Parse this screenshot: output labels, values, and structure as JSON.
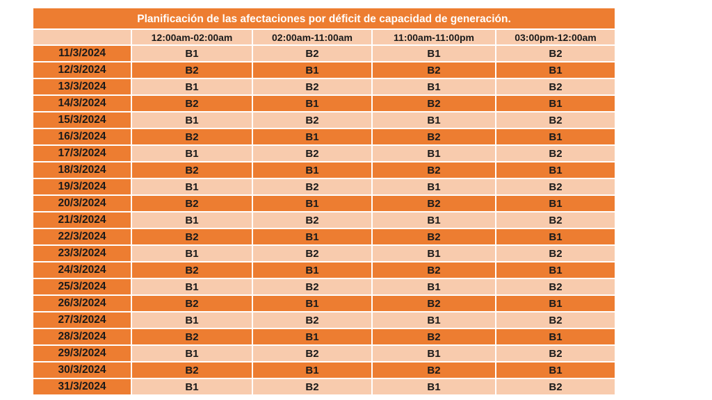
{
  "title": "Planificación de las afectaciones por déficit de capacidad de generación.",
  "columns": [
    "12:00am-02:00am",
    "02:00am-11:00am",
    "11:00am-11:00pm",
    "03:00pm-12:00am"
  ],
  "colors": {
    "dark": "#ED7D31",
    "light": "#F8CBAD",
    "title_text": "#FFFFFF"
  },
  "rows": [
    {
      "date": "11/3/2024",
      "values": [
        "B1",
        "B2",
        "B1",
        "B2"
      ]
    },
    {
      "date": "12/3/2024",
      "values": [
        "B2",
        "B1",
        "B2",
        "B1"
      ]
    },
    {
      "date": "13/3/2024",
      "values": [
        "B1",
        "B2",
        "B1",
        "B2"
      ]
    },
    {
      "date": "14/3/2024",
      "values": [
        "B2",
        "B1",
        "B2",
        "B1"
      ]
    },
    {
      "date": "15/3/2024",
      "values": [
        "B1",
        "B2",
        "B1",
        "B2"
      ]
    },
    {
      "date": "16/3/2024",
      "values": [
        "B2",
        "B1",
        "B2",
        "B1"
      ]
    },
    {
      "date": "17/3/2024",
      "values": [
        "B1",
        "B2",
        "B1",
        "B2"
      ]
    },
    {
      "date": "18/3/2024",
      "values": [
        "B2",
        "B1",
        "B2",
        "B1"
      ]
    },
    {
      "date": "19/3/2024",
      "values": [
        "B1",
        "B2",
        "B1",
        "B2"
      ]
    },
    {
      "date": "20/3/2024",
      "values": [
        "B2",
        "B1",
        "B2",
        "B1"
      ]
    },
    {
      "date": "21/3/2024",
      "values": [
        "B1",
        "B2",
        "B1",
        "B2"
      ]
    },
    {
      "date": "22/3/2024",
      "values": [
        "B2",
        "B1",
        "B2",
        "B1"
      ]
    },
    {
      "date": "23/3/2024",
      "values": [
        "B1",
        "B2",
        "B1",
        "B2"
      ]
    },
    {
      "date": "24/3/2024",
      "values": [
        "B2",
        "B1",
        "B2",
        "B1"
      ]
    },
    {
      "date": "25/3/2024",
      "values": [
        "B1",
        "B2",
        "B1",
        "B2"
      ]
    },
    {
      "date": "26/3/2024",
      "values": [
        "B2",
        "B1",
        "B2",
        "B1"
      ]
    },
    {
      "date": "27/3/2024",
      "values": [
        "B1",
        "B2",
        "B1",
        "B2"
      ]
    },
    {
      "date": "28/3/2024",
      "values": [
        "B2",
        "B1",
        "B2",
        "B1"
      ]
    },
    {
      "date": "29/3/2024",
      "values": [
        "B1",
        "B2",
        "B1",
        "B2"
      ]
    },
    {
      "date": "30/3/2024",
      "values": [
        "B2",
        "B1",
        "B2",
        "B1"
      ]
    },
    {
      "date": "31/3/2024",
      "values": [
        "B1",
        "B2",
        "B1",
        "B2"
      ]
    }
  ]
}
